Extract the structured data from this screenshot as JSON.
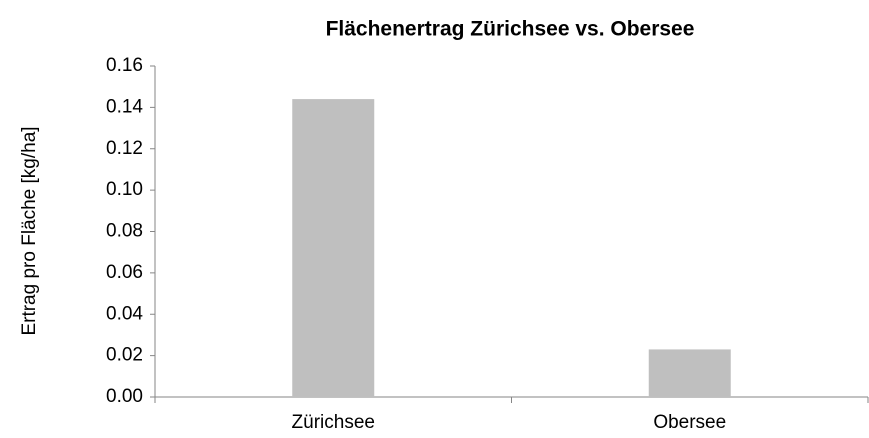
{
  "chart_data": {
    "type": "bar",
    "title": "Flächenertrag Zürichsee vs. Obersee",
    "y_label": "Ertrag pro Fläche [kg/ha]",
    "categories": [
      "Zürichsee",
      "Obersee"
    ],
    "values": [
      0.144,
      0.023
    ],
    "color": "#bfbfbf",
    "ylim": [
      0,
      0.16
    ],
    "yticks": [
      {
        "value": 0,
        "label": "0.00"
      },
      0.02,
      0.04,
      0.06,
      0.08,
      {
        "value": 0.1,
        "label": "0.10"
      },
      0.12,
      0.14,
      0.16
    ],
    "grid": false
  }
}
